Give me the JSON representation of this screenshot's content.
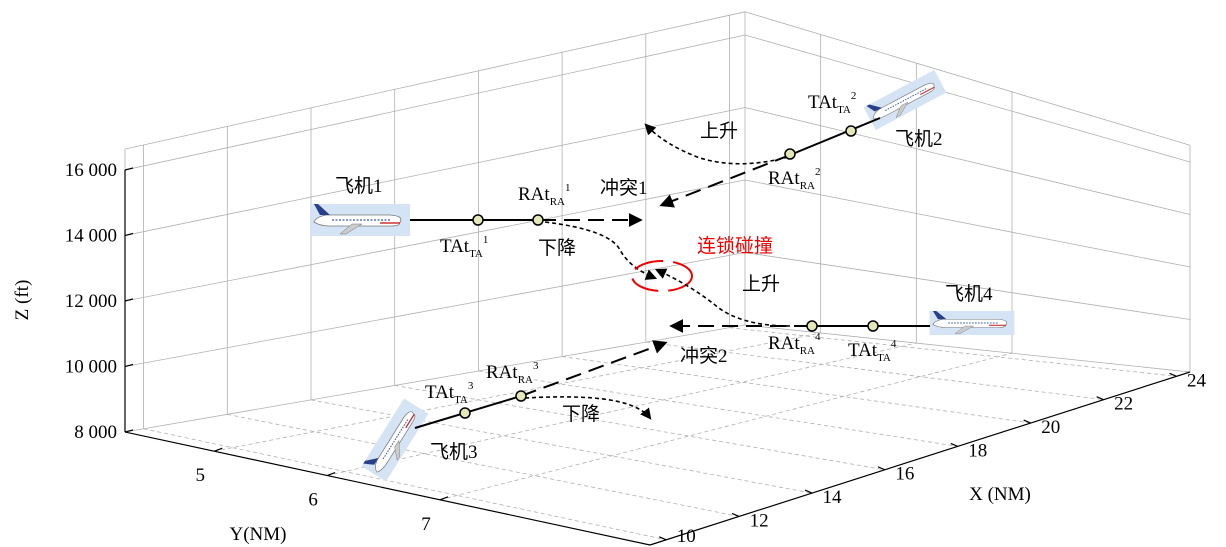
{
  "axes": {
    "z_label": "Z (ft)",
    "z_ticks": [
      "8 000",
      "10 000",
      "12 000",
      "14 000",
      "16 000"
    ],
    "y_label": "Y(NM)",
    "y_ticks": [
      5,
      6,
      7
    ],
    "x_label": "X (NM)",
    "x_ticks": [
      10,
      12,
      14,
      16,
      18,
      20,
      22,
      24
    ]
  },
  "aircraft": [
    {
      "label": "飞机1",
      "ta": {
        "base": "TAt",
        "sub": "TA",
        "sup": "1"
      },
      "ra": {
        "base": "RAt",
        "sub": "RA",
        "sup": "1"
      }
    },
    {
      "label": "飞机2",
      "ta": {
        "base": "TAt",
        "sub": "TA",
        "sup": "2"
      },
      "ra": {
        "base": "RAt",
        "sub": "RA",
        "sup": "2"
      }
    },
    {
      "label": "飞机3",
      "ta": {
        "base": "TAt",
        "sub": "TA",
        "sup": "3"
      },
      "ra": {
        "base": "RAt",
        "sub": "RA",
        "sup": "3"
      }
    },
    {
      "label": "飞机4",
      "ta": {
        "base": "TAt",
        "sub": "TA",
        "sup": "4"
      },
      "ra": {
        "base": "RAt",
        "sub": "RA",
        "sup": "4"
      }
    }
  ],
  "maneuvers": [
    "下降",
    "上升",
    "下降",
    "上升"
  ],
  "conflicts": [
    "冲突1",
    "冲突2"
  ],
  "chain_collision": "连锁碰撞"
}
